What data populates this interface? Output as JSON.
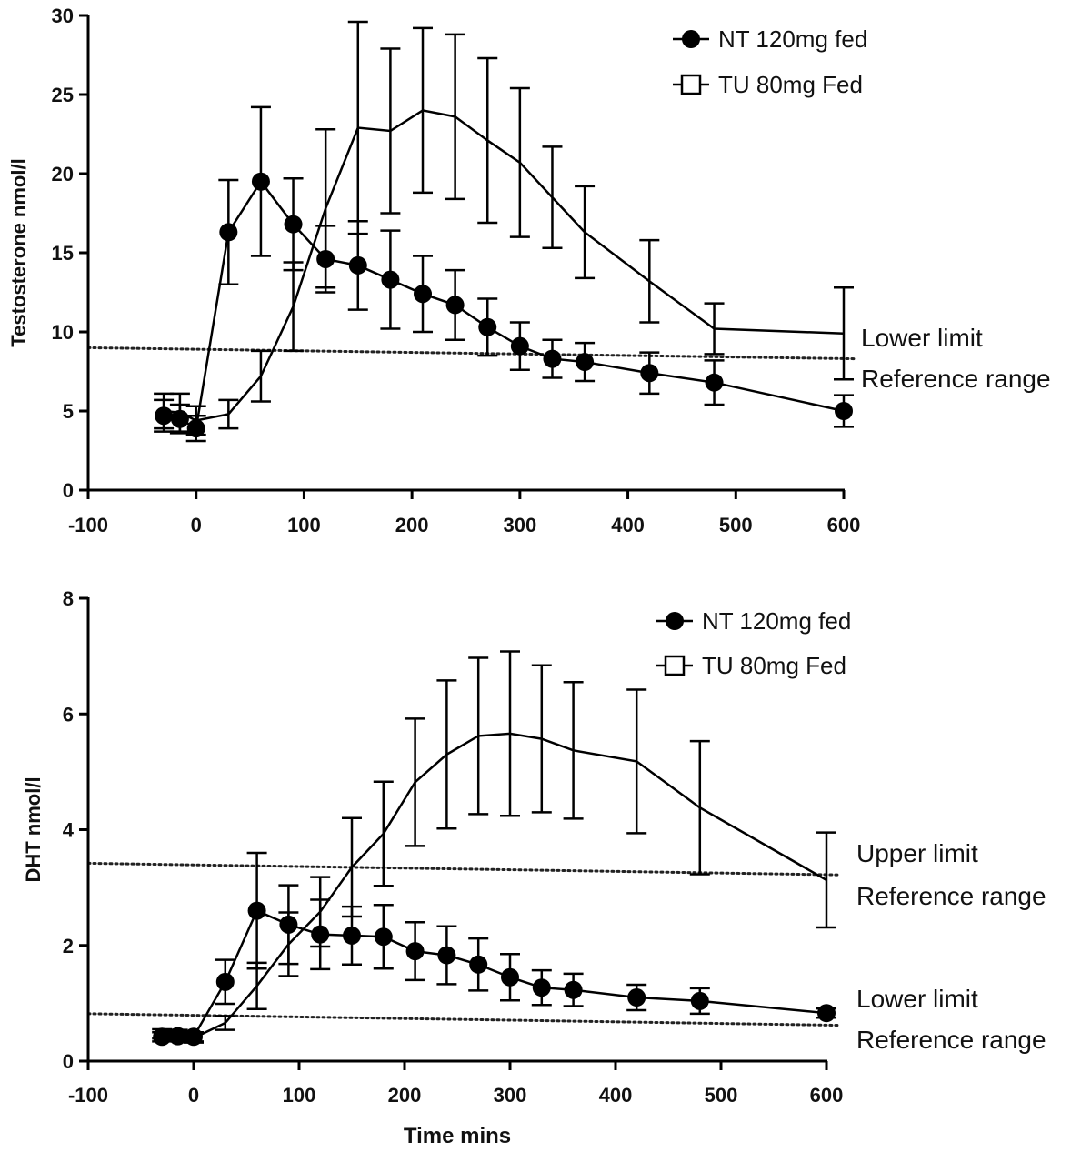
{
  "chart_data": [
    {
      "type": "line",
      "ylabel": "Testosterone nmol/l",
      "xlabel": "",
      "xlim": [
        -100,
        600
      ],
      "ylim": [
        0,
        30
      ],
      "xticks": [
        -100,
        0,
        100,
        200,
        300,
        400,
        500,
        600
      ],
      "yticks": [
        0,
        5,
        10,
        15,
        20,
        25,
        30
      ],
      "legend_position": "top-right",
      "series": [
        {
          "name": "NT 120mg fed",
          "marker": "filled-circle",
          "x": [
            -30,
            -15,
            0,
            30,
            60,
            90,
            120,
            150,
            180,
            210,
            240,
            270,
            300,
            330,
            360,
            420,
            480,
            600
          ],
          "y": [
            4.7,
            4.5,
            3.9,
            16.3,
            19.5,
            16.8,
            14.6,
            14.2,
            13.3,
            12.4,
            11.7,
            10.3,
            9.1,
            8.3,
            8.1,
            7.4,
            6.8,
            5.0
          ],
          "err": [
            1.0,
            0.9,
            0.8,
            3.3,
            4.7,
            2.9,
            2.1,
            2.8,
            3.1,
            2.4,
            2.2,
            1.8,
            1.5,
            1.2,
            1.2,
            1.3,
            1.4,
            1.0
          ]
        },
        {
          "name": "TU 80mg Fed",
          "marker": "open-square",
          "x": [
            -30,
            -15,
            0,
            30,
            60,
            90,
            120,
            150,
            180,
            210,
            240,
            270,
            300,
            330,
            360,
            420,
            480,
            600
          ],
          "y": [
            5.0,
            4.9,
            4.4,
            4.8,
            7.2,
            11.6,
            17.8,
            22.9,
            22.7,
            24.0,
            23.6,
            22.1,
            20.7,
            18.5,
            16.3,
            13.2,
            10.2,
            9.9
          ],
          "err": [
            1.1,
            1.2,
            0.9,
            0.9,
            1.6,
            2.8,
            5.0,
            6.7,
            5.2,
            5.2,
            5.2,
            5.2,
            4.7,
            3.2,
            2.9,
            2.6,
            1.6,
            2.9
          ]
        }
      ],
      "reference_lines": [
        {
          "y_start": 9.0,
          "y_end": 8.3,
          "label_line1": "Lower limit",
          "label_line2": "Reference range"
        }
      ]
    },
    {
      "type": "line",
      "ylabel": "DHT nmol/l",
      "xlabel": "Time mins",
      "xlim": [
        -100,
        600
      ],
      "ylim": [
        0,
        8
      ],
      "xticks": [
        -100,
        0,
        100,
        200,
        300,
        400,
        500,
        600
      ],
      "yticks": [
        0,
        2,
        4,
        6,
        8
      ],
      "legend_position": "top-right",
      "series": [
        {
          "name": "NT 120mg fed",
          "marker": "filled-circle",
          "x": [
            -30,
            -15,
            0,
            30,
            60,
            90,
            120,
            150,
            180,
            210,
            240,
            270,
            300,
            330,
            360,
            420,
            480,
            600
          ],
          "y": [
            0.42,
            0.43,
            0.42,
            1.37,
            2.6,
            2.36,
            2.19,
            2.17,
            2.15,
            1.9,
            1.83,
            1.67,
            1.45,
            1.27,
            1.23,
            1.1,
            1.04,
            0.83
          ],
          "err": [
            0.08,
            0.08,
            0.08,
            0.38,
            1.0,
            0.68,
            0.6,
            0.5,
            0.55,
            0.5,
            0.5,
            0.45,
            0.4,
            0.3,
            0.28,
            0.22,
            0.22,
            0.08
          ]
        },
        {
          "name": "TU 80mg Fed",
          "marker": "open-square",
          "x": [
            -30,
            -15,
            0,
            30,
            60,
            90,
            120,
            150,
            180,
            210,
            240,
            270,
            300,
            330,
            360,
            420,
            480,
            600
          ],
          "y": [
            0.47,
            0.46,
            0.4,
            0.66,
            1.3,
            2.02,
            2.58,
            3.35,
            3.93,
            4.82,
            5.3,
            5.62,
            5.66,
            5.57,
            5.37,
            5.18,
            4.38,
            3.13
          ],
          "err": [
            0.08,
            0.08,
            0.08,
            0.12,
            0.4,
            0.55,
            0.6,
            0.85,
            0.9,
            1.1,
            1.28,
            1.35,
            1.42,
            1.27,
            1.18,
            1.24,
            1.15,
            0.82
          ]
        }
      ],
      "reference_lines": [
        {
          "y_start": 3.42,
          "y_end": 3.22,
          "label_line1": "Upper limit",
          "label_line2": "Reference range"
        },
        {
          "y_start": 0.82,
          "y_end": 0.62,
          "label_line1": "Lower limit",
          "label_line2": "Reference range"
        }
      ]
    }
  ]
}
